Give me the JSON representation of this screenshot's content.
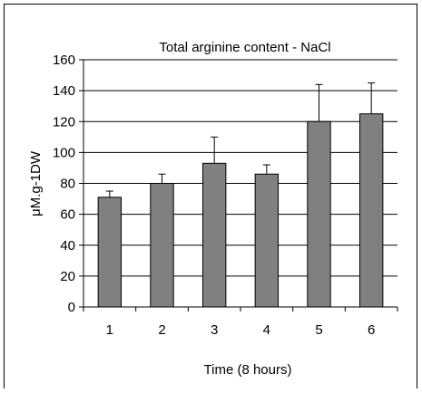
{
  "chart_data": {
    "type": "bar",
    "title": "Total arginine content - NaCl",
    "xlabel": "Time (8 hours)",
    "ylabel": "μM.g-1DW",
    "categories": [
      "1",
      "2",
      "3",
      "4",
      "5",
      "6"
    ],
    "values": [
      71,
      80,
      93,
      86,
      120,
      125
    ],
    "error_upper": [
      4,
      6,
      17,
      6,
      24,
      20
    ],
    "ylim": [
      0,
      160
    ],
    "yticks": [
      "0",
      "20",
      "40",
      "60",
      "80",
      "100",
      "120",
      "140",
      "160"
    ],
    "grid": true,
    "bar_color": "#808080",
    "legend": "none"
  }
}
